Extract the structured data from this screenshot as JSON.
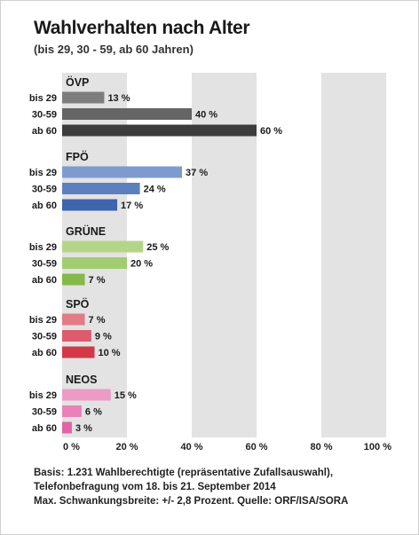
{
  "title": "Wahlverhalten nach Alter",
  "subtitle": "(bis 29, 30 - 59, ab 60 Jahren)",
  "footnote": [
    "Basis: 1.231 Wahlberechtigte (repräsentative Zufallsauswahl),",
    "Telefonbefragung vom 18. bis 21. September 2014",
    "Max. Schwankungsbreite: +/- 2,8 Prozent. Quelle: ORF/ISA/SORA"
  ],
  "chart_data": {
    "type": "bar",
    "orientation": "horizontal",
    "xlim": [
      0,
      100
    ],
    "x_ticks": [
      "0 %",
      "20 %",
      "40 %",
      "60 %",
      "80 %",
      "100 %"
    ],
    "value_suffix": " %",
    "grid": "alternating vertical bands",
    "groups": [
      {
        "name": "ÖVP",
        "categories": [
          "bis 29",
          "30-59",
          "ab 60"
        ],
        "values": [
          13,
          40,
          60
        ],
        "colors": [
          "#7d7d7d",
          "#656565",
          "#3c3c3c"
        ]
      },
      {
        "name": "FPÖ",
        "categories": [
          "bis 29",
          "30-59",
          "ab 60"
        ],
        "values": [
          37,
          24,
          17
        ],
        "colors": [
          "#7e9bcf",
          "#5c7fc0",
          "#3d64ad"
        ]
      },
      {
        "name": "GRÜNE",
        "categories": [
          "bis 29",
          "30-59",
          "ab 60"
        ],
        "values": [
          25,
          20,
          7
        ],
        "colors": [
          "#b3d58a",
          "#a2cc71",
          "#86b84b"
        ]
      },
      {
        "name": "SPÖ",
        "categories": [
          "bis 29",
          "30-59",
          "ab 60"
        ],
        "values": [
          7,
          9,
          10
        ],
        "colors": [
          "#e17b88",
          "#dc5c6d",
          "#d33848"
        ]
      },
      {
        "name": "NEOS",
        "categories": [
          "bis 29",
          "30-59",
          "ab 60"
        ],
        "values": [
          15,
          6,
          3
        ],
        "colors": [
          "#ec9bc5",
          "#e882b8",
          "#e064a5"
        ]
      }
    ]
  }
}
